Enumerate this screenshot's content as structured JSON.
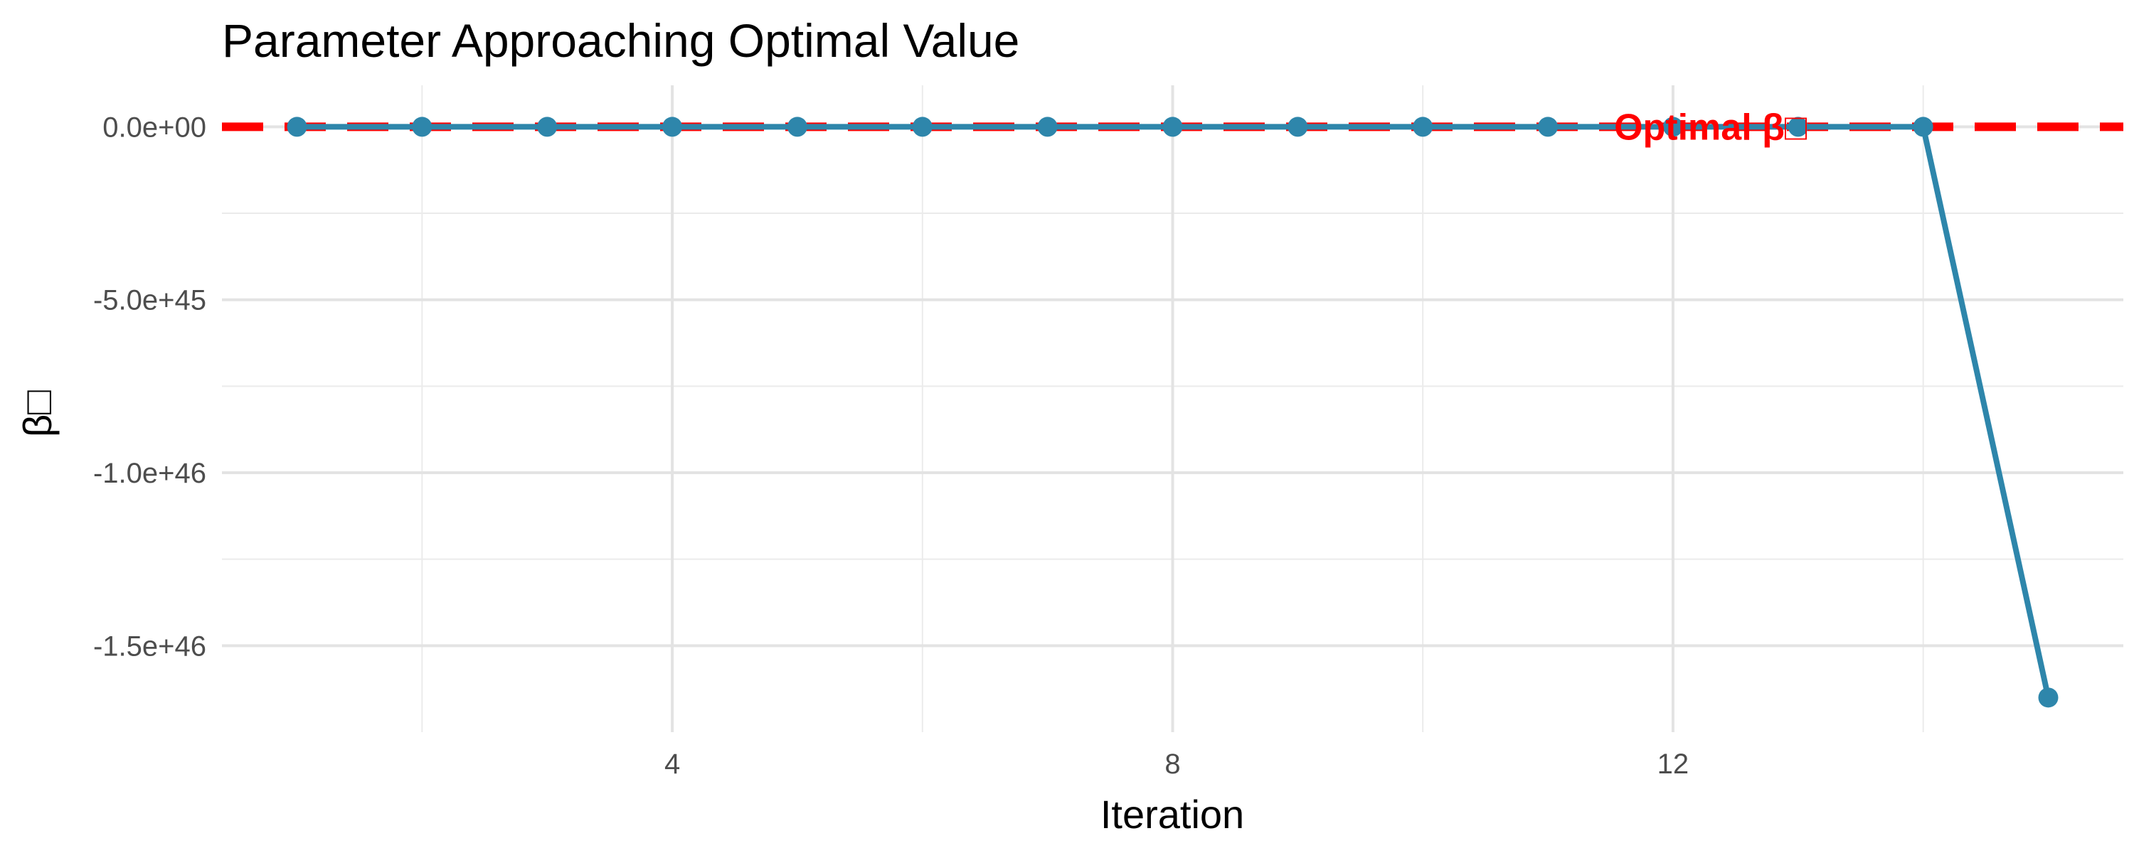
{
  "chart_data": {
    "type": "line",
    "title": "Parameter Approaching Optimal Value",
    "xlabel": "Iteration",
    "ylabel": "β□",
    "x": [
      1,
      2,
      3,
      4,
      5,
      6,
      7,
      8,
      9,
      10,
      11,
      12,
      13,
      14,
      15
    ],
    "series": [
      {
        "values": [
          0,
          0,
          0,
          0,
          0,
          0,
          0,
          0,
          0,
          0,
          0,
          0,
          0,
          0,
          -1.65e+46
        ],
        "color": "#2e86ab"
      }
    ],
    "xlim": [
      0.4,
      15.6
    ],
    "ylim": [
      -1.75e+46,
      1.2e+45
    ],
    "x_ticks": [
      4,
      8,
      12
    ],
    "x_tick_labels": [
      "4",
      "8",
      "12"
    ],
    "x_minor_ticks": [
      2,
      6,
      10,
      14
    ],
    "y_ticks": [
      0,
      -5e+45,
      -1e+46,
      -1.5e+46
    ],
    "y_tick_labels": [
      "0.0e+00",
      "-5.0e+45",
      "-1.0e+46",
      "-1.5e+46"
    ],
    "y_minor_ticks": [
      -2.5e+45,
      -7.5e+45,
      -1.25e+46
    ],
    "grid": true,
    "reference_line": {
      "y": 0,
      "style": "dashed",
      "color": "#ff0000",
      "label": "Optimal β□",
      "label_x": 12.3
    }
  }
}
